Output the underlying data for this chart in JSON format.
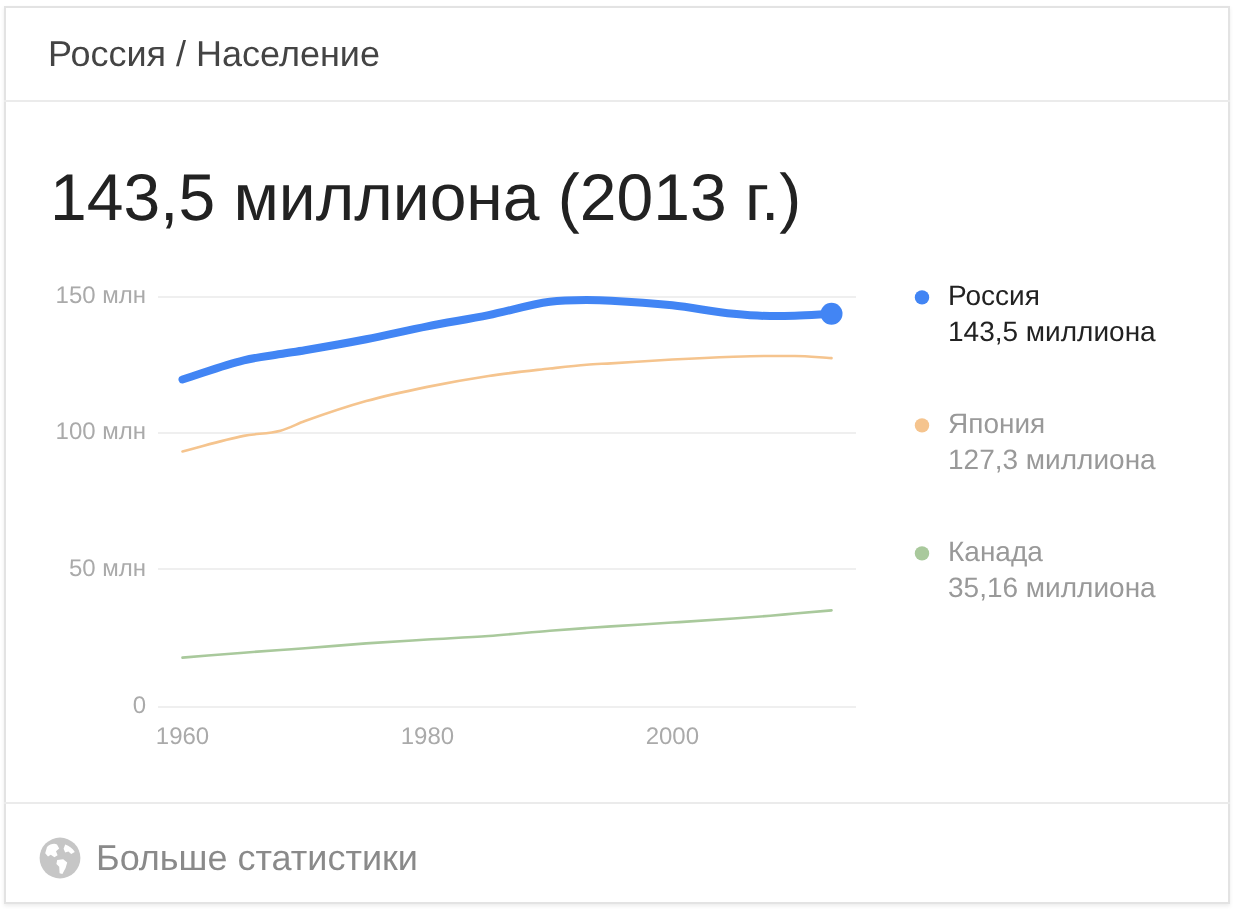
{
  "chart_data": {
    "type": "line",
    "title": "143,5 миллиона (2013 г.)",
    "annotations": [
      "Россия / Население",
      "143,5 миллиона",
      "127,3 миллиона",
      "35,16 миллиона",
      "Больше статистики"
    ],
    "x": [
      1960,
      1965,
      1968,
      1970,
      1975,
      1980,
      1985,
      1990,
      1993,
      1995,
      2000,
      2005,
      2008,
      2010,
      2013
    ],
    "series": [
      {
        "name": "Россия",
        "color": "#4285f4",
        "values": [
          119.5,
          126.5,
          128.8,
          130.2,
          134.2,
          138.9,
          143.0,
          147.9,
          148.5,
          148.3,
          146.6,
          143.5,
          142.7,
          142.8,
          143.5
        ]
      },
      {
        "name": "Япония",
        "color": "#f5c48e",
        "values": [
          93.2,
          98.9,
          100.8,
          104.3,
          111.6,
          116.8,
          120.8,
          123.5,
          124.9,
          125.4,
          126.8,
          127.8,
          128.1,
          128.1,
          127.3
        ]
      },
      {
        "name": "Канада",
        "color": "#a9c99c",
        "values": [
          17.9,
          19.7,
          20.7,
          21.3,
          23.1,
          24.5,
          25.8,
          27.7,
          28.7,
          29.3,
          30.7,
          32.2,
          33.2,
          34.0,
          35.16
        ]
      },
      {
        "type": "scatter",
        "color": "#4285f4",
        "x": [
          2013
        ],
        "values": [
          143.5
        ],
        "marker": "circle"
      }
    ],
    "xlim": [
      1958,
      2015
    ],
    "xticks": [
      1960,
      1980,
      2000
    ],
    "ylim": [
      0,
      150
    ],
    "yticks": [
      0,
      {
        "value": 50,
        "label": "50 млн"
      },
      {
        "value": 100,
        "label": "100 млн"
      },
      {
        "value": 150,
        "label": "150 млн"
      }
    ],
    "grid": "y",
    "legend": "right"
  }
}
